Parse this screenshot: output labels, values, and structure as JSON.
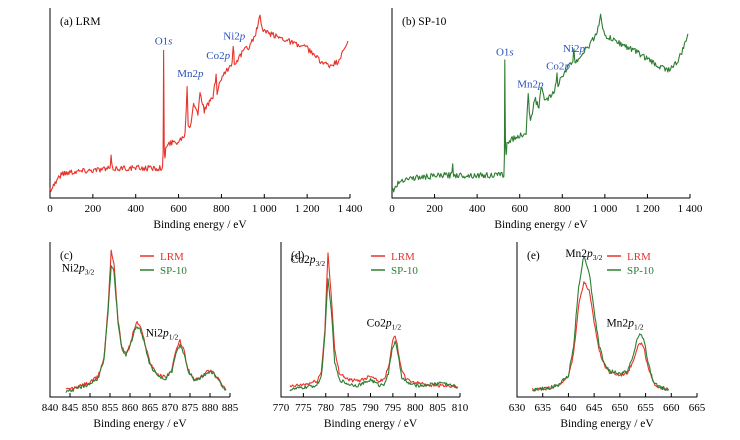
{
  "colors": {
    "lrm": "#e8332a",
    "sp10": "#2e7d32",
    "peak_label": "#2a52be"
  },
  "chart_data": [
    {
      "id": "a",
      "type": "line",
      "panel_label": "(a) LRM",
      "xlabel": "Binding energy / eV",
      "xlim": [
        0,
        1400
      ],
      "ylim": [
        0,
        100
      ],
      "xticks": [
        0,
        200,
        400,
        600,
        800,
        1000,
        1200,
        1400
      ],
      "xtick_labels": [
        "0",
        "200",
        "400",
        "600",
        "800",
        "1 000",
        "1 200",
        "1 400"
      ],
      "annotations": [
        {
          "main": "O1",
          "italic": "s",
          "x": 530,
          "y": 84
        },
        {
          "main": "Mn2",
          "italic": "p",
          "x": 655,
          "y": 66
        },
        {
          "main": "Co2",
          "italic": "p",
          "x": 785,
          "y": 76
        },
        {
          "main": "Ni2",
          "italic": "p",
          "x": 860,
          "y": 87
        }
      ],
      "series": [
        {
          "name": "LRM",
          "color_key": "lrm",
          "x": [
            0,
            20,
            40,
            60,
            100,
            150,
            200,
            250,
            280,
            285,
            290,
            300,
            350,
            400,
            450,
            500,
            525,
            528,
            530,
            533,
            536,
            540,
            560,
            600,
            630,
            640,
            645,
            650,
            655,
            670,
            690,
            700,
            720,
            760,
            775,
            780,
            790,
            800,
            830,
            850,
            855,
            860,
            880,
            900,
            930,
            960,
            980,
            990,
            1000,
            1050,
            1100,
            1150,
            1200,
            1250,
            1300,
            1340,
            1370,
            1390
          ],
          "y": [
            3,
            6,
            10,
            12,
            13,
            13.5,
            14,
            14.5,
            14.8,
            21,
            15,
            14.8,
            15,
            15,
            15,
            15,
            15.5,
            22,
            82,
            28,
            20,
            26,
            29,
            30,
            34,
            60,
            40,
            38,
            39,
            52,
            45,
            58,
            47,
            55,
            66,
            57,
            62,
            65,
            70,
            74,
            84,
            74,
            76,
            80,
            83,
            90,
            100,
            93,
            91,
            89,
            87,
            84,
            82,
            76,
            72,
            74,
            80,
            86
          ]
        }
      ]
    },
    {
      "id": "b",
      "type": "line",
      "panel_label": "(b) SP-10",
      "xlabel": "Binding energy / eV",
      "xlim": [
        0,
        1400
      ],
      "ylim": [
        0,
        100
      ],
      "xticks": [
        0,
        200,
        400,
        600,
        800,
        1000,
        1200,
        1400
      ],
      "xtick_labels": [
        "0",
        "200",
        "400",
        "600",
        "800",
        "1 000",
        "1 200",
        "1 400"
      ],
      "annotations": [
        {
          "main": "O1",
          "italic": "s",
          "x": 530,
          "y": 78
        },
        {
          "main": "Mn2",
          "italic": "p",
          "x": 650,
          "y": 60
        },
        {
          "main": "Co2",
          "italic": "p",
          "x": 780,
          "y": 70
        },
        {
          "main": "Ni2",
          "italic": "p",
          "x": 855,
          "y": 80
        }
      ],
      "series": [
        {
          "name": "SP-10",
          "color_key": "sp10",
          "x": [
            0,
            20,
            40,
            60,
            100,
            150,
            200,
            250,
            280,
            285,
            290,
            300,
            350,
            400,
            450,
            500,
            525,
            528,
            530,
            533,
            536,
            540,
            560,
            600,
            630,
            640,
            645,
            650,
            655,
            670,
            690,
            700,
            720,
            760,
            775,
            780,
            790,
            800,
            830,
            850,
            855,
            860,
            880,
            900,
            930,
            960,
            980,
            990,
            1000,
            1050,
            1100,
            1150,
            1200,
            1250,
            1300,
            1340,
            1370,
            1390
          ],
          "y": [
            2,
            5,
            8,
            9,
            9.5,
            10,
            10.5,
            11,
            11,
            17,
            11.5,
            11,
            11,
            11,
            11,
            11,
            11.5,
            20,
            76,
            27,
            22,
            29,
            31,
            33,
            35,
            57,
            45,
            43,
            44,
            54,
            49,
            60,
            52,
            57,
            67,
            60,
            64,
            67,
            72,
            75,
            82,
            74,
            77,
            80,
            84,
            90,
            100,
            92,
            89,
            86,
            83,
            80,
            76,
            72,
            70,
            74,
            82,
            90
          ]
        }
      ]
    },
    {
      "id": "c",
      "type": "line",
      "panel_label": "(c)",
      "xlabel": "Binding energy / eV",
      "xlim": [
        840,
        885
      ],
      "ylim": [
        0,
        100
      ],
      "xticks": [
        840,
        845,
        850,
        855,
        860,
        865,
        870,
        875,
        880,
        885
      ],
      "xtick_labels": [
        "840",
        "845",
        "850",
        "855",
        "860",
        "865",
        "870",
        "875",
        "880",
        "885"
      ],
      "legend": [
        "LRM",
        "SP-10"
      ],
      "annotations": [
        {
          "main": "Ni2",
          "italic": "p",
          "sub": "3/2",
          "x": 847,
          "y": 85
        },
        {
          "main": "Ni2",
          "italic": "p",
          "sub": "1/2",
          "x": 868,
          "y": 40
        }
      ],
      "series": [
        {
          "name": "LRM",
          "color_key": "lrm",
          "x": [
            844,
            846,
            848,
            850,
            852,
            853.5,
            854.5,
            855.3,
            856,
            857,
            858,
            859,
            860,
            861,
            861.8,
            862.5,
            863.5,
            865,
            867,
            869,
            870.5,
            871.5,
            872.5,
            873.5,
            874.5,
            876,
            877.5,
            879,
            880,
            881,
            882,
            883,
            884
          ],
          "y": [
            3,
            4,
            6,
            8,
            12,
            25,
            60,
            100,
            90,
            52,
            32,
            28,
            34,
            45,
            50,
            47,
            38,
            22,
            13,
            12,
            17,
            30,
            37,
            30,
            17,
            10,
            11,
            15,
            17,
            15,
            11,
            6,
            3
          ]
        },
        {
          "name": "SP-10",
          "color_key": "sp10",
          "x": [
            844,
            846,
            848,
            850,
            852,
            853.5,
            854.5,
            855.3,
            856,
            857,
            858,
            859,
            860,
            861,
            861.8,
            862.5,
            863.5,
            865,
            867,
            869,
            870.5,
            871.5,
            872.5,
            873.5,
            874.5,
            876,
            877.5,
            879,
            880,
            881,
            882,
            883,
            884
          ],
          "y": [
            2,
            3,
            5,
            7,
            11,
            23,
            56,
            89,
            85,
            50,
            31,
            27,
            33,
            43,
            47,
            45,
            36,
            20,
            12,
            11,
            16,
            28,
            34,
            28,
            16,
            10,
            11,
            14,
            16,
            14,
            10,
            6,
            3
          ]
        }
      ]
    },
    {
      "id": "d",
      "type": "line",
      "panel_label": "(d)",
      "xlabel": "Binding energy / eV",
      "xlim": [
        770,
        810
      ],
      "ylim": [
        0,
        100
      ],
      "xticks": [
        770,
        775,
        780,
        785,
        790,
        795,
        800,
        805,
        810
      ],
      "xtick_labels": [
        "770",
        "775",
        "780",
        "785",
        "790",
        "795",
        "800",
        "805",
        "810"
      ],
      "legend": [
        "LRM",
        "SP-10"
      ],
      "annotations": [
        {
          "main": "Co2",
          "italic": "p",
          "sub": "3/2",
          "x": 776,
          "y": 91
        },
        {
          "main": "Co2",
          "italic": "p",
          "sub": "1/2",
          "x": 793,
          "y": 47
        }
      ],
      "series": [
        {
          "name": "LRM",
          "color_key": "lrm",
          "x": [
            772,
            774,
            776,
            778,
            779,
            779.8,
            780.5,
            781.2,
            782,
            783,
            785,
            787,
            789,
            790,
            791,
            792,
            793,
            794,
            794.8,
            795.5,
            796.2,
            797,
            798,
            800,
            802,
            804,
            806,
            808,
            809.5
          ],
          "y": [
            5,
            6,
            7,
            9,
            15,
            45,
            98,
            70,
            30,
            15,
            10,
            9,
            11,
            13,
            11,
            9,
            10,
            18,
            35,
            41,
            30,
            16,
            10,
            8,
            7,
            6,
            6,
            5,
            5
          ]
        },
        {
          "name": "SP-10",
          "color_key": "sp10",
          "x": [
            772,
            774,
            776,
            778,
            779,
            779.8,
            780.5,
            781.2,
            782,
            783,
            785,
            787,
            789,
            790,
            791,
            792,
            793,
            794,
            794.8,
            795.5,
            796.2,
            797,
            798,
            800,
            802,
            804,
            806,
            808,
            809.5
          ],
          "y": [
            3,
            4,
            5,
            6,
            12,
            40,
            80,
            60,
            22,
            10,
            7,
            6,
            8,
            10,
            8,
            6,
            7,
            14,
            31,
            37,
            26,
            12,
            8,
            6,
            6,
            7,
            8,
            6,
            5
          ]
        }
      ]
    },
    {
      "id": "e",
      "type": "line",
      "panel_label": "(e)",
      "xlabel": "Binding energy / eV",
      "xlim": [
        630,
        665
      ],
      "ylim": [
        0,
        100
      ],
      "xticks": [
        630,
        635,
        640,
        645,
        650,
        655,
        660,
        665
      ],
      "xtick_labels": [
        "630",
        "635",
        "640",
        "645",
        "650",
        "655",
        "660",
        "665"
      ],
      "legend": [
        "LRM",
        "SP-10"
      ],
      "annotations": [
        {
          "main": "Mn2",
          "italic": "p",
          "sub": "3/2",
          "x": 643,
          "y": 95
        },
        {
          "main": "Mn2",
          "italic": "p",
          "sub": "1/2",
          "x": 651,
          "y": 47
        }
      ],
      "series": [
        {
          "name": "LRM",
          "color_key": "lrm",
          "x": [
            633,
            636,
            638,
            640,
            641,
            642,
            643,
            644,
            645,
            646,
            647,
            648,
            650,
            651.5,
            652.5,
            653.5,
            654.2,
            654.8,
            655.5,
            656.5,
            657.5,
            658.5,
            659.5
          ],
          "y": [
            3,
            4,
            6,
            12,
            28,
            62,
            78,
            72,
            50,
            30,
            20,
            15,
            13,
            15,
            22,
            34,
            35,
            30,
            18,
            8,
            5,
            4,
            3
          ]
        },
        {
          "name": "SP-10",
          "color_key": "sp10",
          "x": [
            633,
            636,
            638,
            640,
            641,
            642,
            643,
            644,
            645,
            646,
            647,
            648,
            650,
            651.5,
            652.5,
            653.5,
            654.2,
            654.8,
            655.5,
            656.5,
            657.5,
            658.5,
            659.5
          ],
          "y": [
            3,
            4,
            6,
            13,
            33,
            75,
            96,
            85,
            58,
            33,
            21,
            16,
            14,
            16,
            25,
            40,
            42,
            36,
            21,
            9,
            5,
            4,
            3
          ]
        }
      ]
    }
  ]
}
